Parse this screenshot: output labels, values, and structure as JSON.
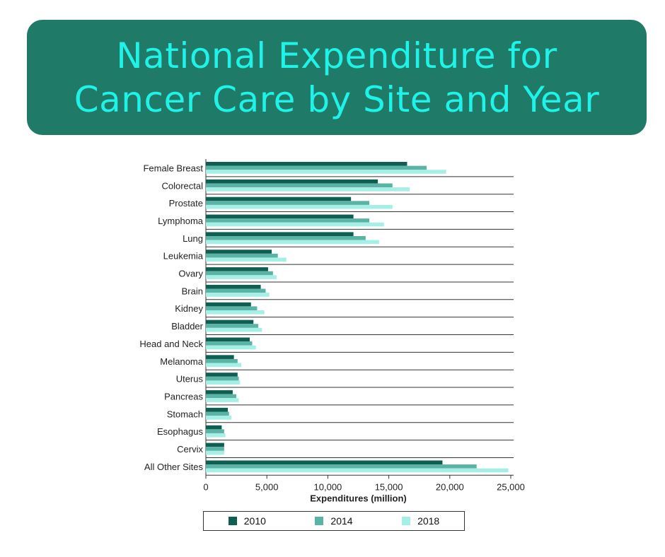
{
  "header": {
    "title_line1": "National Expenditure for",
    "title_line2": "Cancer Care by Site and Year"
  },
  "colors": {
    "banner": "#1f7a68",
    "banner_text": "#1ff2e6",
    "series_2010": "#0f5e52",
    "series_2014": "#5bb3a6",
    "series_2018": "#a6efe6"
  },
  "chart_data": {
    "type": "bar",
    "orientation": "horizontal",
    "title": "",
    "xlabel": "Expenditures (million)",
    "ylabel": "",
    "xlim": [
      0,
      25000
    ],
    "xticks": [
      "0",
      "5,000",
      "10,000",
      "15,000",
      "20,000",
      "25,000"
    ],
    "grid": "horizontal separators",
    "legend_position": "bottom",
    "categories": [
      "Female Breast",
      "Colorectal",
      "Prostate",
      "Lymphoma",
      "Lung",
      "Leukemia",
      "Ovary",
      "Brain",
      "Kidney",
      "Bladder",
      "Head and Neck",
      "Melanoma",
      "Uterus",
      "Pancreas",
      "Stomach",
      "Esophagus",
      "Cervix",
      "All Other Sites"
    ],
    "series": [
      {
        "name": "2010",
        "values": [
          16500,
          14100,
          11900,
          12100,
          12100,
          5400,
          5100,
          4500,
          3700,
          3900,
          3600,
          2300,
          2600,
          2200,
          1800,
          1300,
          1500,
          19400
        ]
      },
      {
        "name": "2014",
        "values": [
          18100,
          15300,
          13400,
          13400,
          13100,
          5900,
          5500,
          4900,
          4200,
          4300,
          3800,
          2600,
          2700,
          2500,
          1900,
          1500,
          1500,
          22200
        ]
      },
      {
        "name": "2018",
        "values": [
          19700,
          16700,
          15300,
          14600,
          14200,
          6600,
          5800,
          5200,
          4800,
          4600,
          4100,
          2900,
          2800,
          2700,
          2100,
          1600,
          1500,
          24800
        ]
      }
    ]
  }
}
